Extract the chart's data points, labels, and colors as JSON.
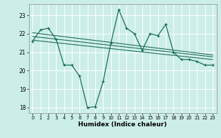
{
  "xlabel": "Humidex (Indice chaleur)",
  "bg_color": "#cceee8",
  "grid_color": "#ffffff",
  "line_color": "#1a6b5a",
  "xlim": [
    -0.5,
    23.5
  ],
  "ylim": [
    17.7,
    23.6
  ],
  "yticks": [
    18,
    19,
    20,
    21,
    22,
    23
  ],
  "xticks": [
    0,
    1,
    2,
    3,
    4,
    5,
    6,
    7,
    8,
    9,
    10,
    11,
    12,
    13,
    14,
    15,
    16,
    17,
    18,
    19,
    20,
    21,
    22,
    23
  ],
  "series1_x": [
    0,
    1,
    2,
    3,
    4,
    5,
    6,
    7,
    8,
    9,
    10,
    11,
    12,
    13,
    14,
    15,
    16,
    17,
    18,
    19,
    20,
    21,
    22,
    23
  ],
  "series1_y": [
    21.6,
    22.2,
    22.3,
    21.7,
    20.3,
    20.3,
    19.7,
    18.0,
    18.05,
    19.4,
    21.5,
    23.3,
    22.3,
    22.0,
    21.1,
    22.0,
    21.9,
    22.5,
    21.0,
    20.6,
    20.6,
    20.5,
    20.3,
    20.3
  ],
  "trend1_x": [
    0,
    23
  ],
  "trend1_y": [
    22.05,
    20.85
  ],
  "trend2_x": [
    0,
    23
  ],
  "trend2_y": [
    21.85,
    20.75
  ],
  "trend3_x": [
    0,
    23
  ],
  "trend3_y": [
    21.65,
    20.6
  ]
}
